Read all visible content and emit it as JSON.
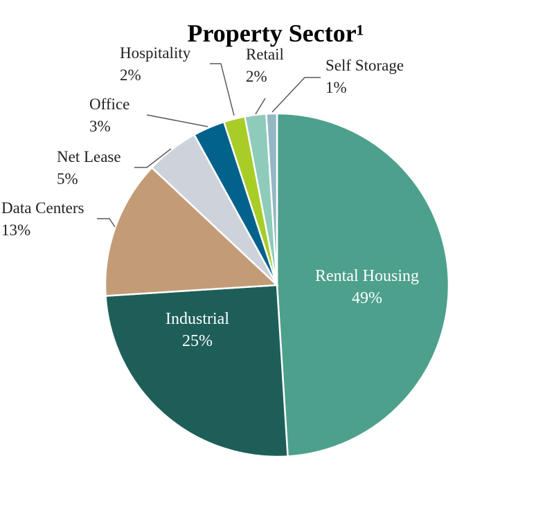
{
  "chart_data": {
    "type": "pie",
    "title": "Property Sector¹",
    "start_angle_deg": 0,
    "direction": "clockwise",
    "slices": [
      {
        "label": "Rental Housing",
        "value_label": "49%",
        "value": 49,
        "color": "#4da08c",
        "label_inside": true
      },
      {
        "label": "Industrial",
        "value_label": "25%",
        "value": 25,
        "color": "#1e5e59",
        "label_inside": true
      },
      {
        "label": "Data Centers",
        "value_label": "13%",
        "value": 13,
        "color": "#c39c77",
        "label_inside": false
      },
      {
        "label": "Net Lease",
        "value_label": "5%",
        "value": 5,
        "color": "#ced2da",
        "label_inside": false
      },
      {
        "label": "Office",
        "value_label": "3%",
        "value": 3,
        "color": "#03628c",
        "label_inside": false
      },
      {
        "label": "Hospitality",
        "value_label": "2%",
        "value": 2,
        "color": "#a8cd27",
        "label_inside": false
      },
      {
        "label": "Retail",
        "value_label": "2%",
        "value": 2,
        "color": "#8ecbbb",
        "label_inside": false
      },
      {
        "label": "Self Storage",
        "value_label": "1%",
        "value": 1,
        "color": "#93b8c4",
        "label_inside": false
      }
    ]
  }
}
